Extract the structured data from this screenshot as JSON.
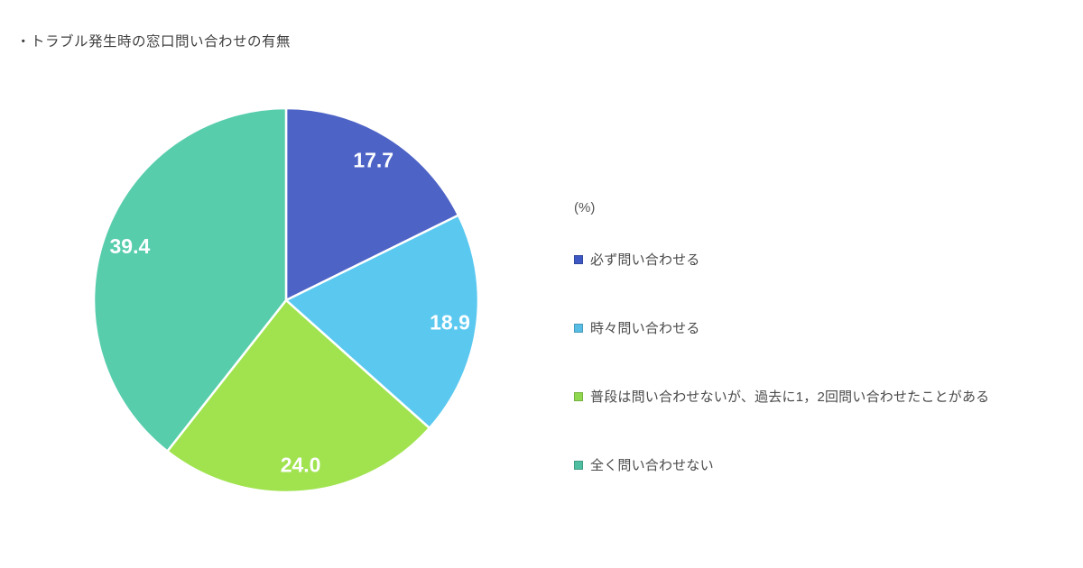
{
  "page": {
    "title": "・トラブル発生時の窓口問い合わせの有無"
  },
  "legend": {
    "unit_label": "(%)",
    "items": [
      {
        "label": "必ず問い合わせる",
        "color": "#3d58c2"
      },
      {
        "label": "時々問い合わせる",
        "color": "#58bde4"
      },
      {
        "label": "普段は問い合わせないが、過去に1，2回問い合わせたことがある",
        "color": "#90d850"
      },
      {
        "label": "全く問い合わせない",
        "color": "#4fbfa1"
      }
    ]
  },
  "chart_data": {
    "type": "pie",
    "title": "トラブル発生時の窓口問い合わせの有無",
    "unit": "%",
    "categories": [
      "必ず問い合わせる",
      "時々問い合わせる",
      "普段は問い合わせないが、過去に1，2回問い合わせたことがある",
      "全く問い合わせない"
    ],
    "values": [
      17.7,
      18.9,
      24.0,
      39.4
    ],
    "value_labels": [
      "17.7",
      "18.9",
      "24.0",
      "39.4"
    ],
    "colors": [
      "#4d63c6",
      "#5bc8f0",
      "#a0e34f",
      "#57cdac"
    ],
    "slice_border_color": "#ffffff",
    "value_label_color": "#fdfeff",
    "start_angle": "top",
    "direction": "clockwise",
    "legend_position": "right",
    "total": 100.0
  }
}
